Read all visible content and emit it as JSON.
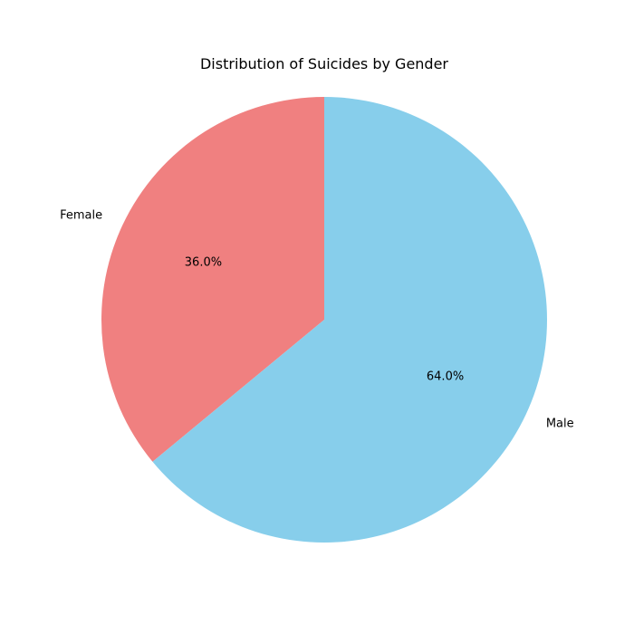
{
  "chart_data": {
    "type": "pie",
    "title": "Distribution of Suicides by Gender",
    "slices": [
      {
        "label": "Female",
        "value": 36.0,
        "pct_label": "36.0%",
        "color": "#f08080"
      },
      {
        "label": "Male",
        "value": 64.0,
        "pct_label": "64.0%",
        "color": "#87ceeb"
      }
    ],
    "start_angle_deg": 90,
    "direction": "counterclockwise",
    "legend": "none"
  }
}
